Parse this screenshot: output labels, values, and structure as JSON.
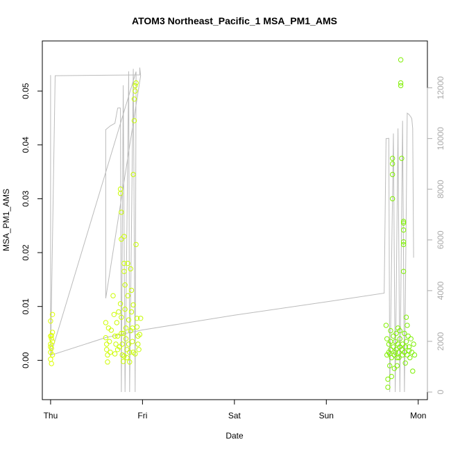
{
  "chart_data": {
    "type": "scatter",
    "title": "ATOM3 Northeast_Pacific_1 MSA_PM1_AMS",
    "xlabel": "Date",
    "ylabel": "MSA_PM1_AMS",
    "x_ticks": [
      "Thu",
      "Fri",
      "Sat",
      "Sun",
      "Mon"
    ],
    "x_range": [
      -0.09,
      4.1
    ],
    "y_ticks": [
      "0.00",
      "0.01",
      "0.02",
      "0.03",
      "0.04",
      "0.05"
    ],
    "y_tick_values": [
      0,
      0.01,
      0.02,
      0.03,
      0.04,
      0.05
    ],
    "y_range": [
      -0.0073,
      0.0593
    ],
    "y2_ticks": [
      "0",
      "2000",
      "4000",
      "6000",
      "8000",
      "10000",
      "12000"
    ],
    "y2_tick_values": [
      0,
      2000,
      4000,
      6000,
      8000,
      10000,
      12000
    ],
    "y2_range": [
      -300,
      13850
    ],
    "grid": false,
    "legend": "none",
    "series": [
      {
        "role": "scatter",
        "color_low": "#ddff00",
        "color_high": "#77ee00",
        "points": [
          [
            0.0,
            0.0073
          ],
          [
            0.0,
            0.0045
          ],
          [
            0.0,
            0.003
          ],
          [
            0.0,
            0.0015
          ],
          [
            0.0,
            0.0002
          ],
          [
            0.01,
            0.004
          ],
          [
            0.01,
            0.0022
          ],
          [
            0.01,
            -0.0006
          ],
          [
            0.02,
            0.0085
          ],
          [
            0.02,
            0.0052
          ],
          [
            0.02,
            0.0035
          ],
          [
            0.02,
            0.001
          ],
          [
            0.0,
            0.0025
          ],
          [
            0.01,
            0.0046
          ],
          [
            0.6,
            0.007
          ],
          [
            0.6,
            0.0042
          ],
          [
            0.61,
            0.003
          ],
          [
            0.61,
            0.002
          ],
          [
            0.62,
            0.001
          ],
          [
            0.62,
            -0.0003
          ],
          [
            0.63,
            0.006
          ],
          [
            0.64,
            0.0035
          ],
          [
            0.65,
            0.0015
          ],
          [
            0.66,
            0.0056
          ],
          [
            0.68,
            0.012
          ],
          [
            0.69,
            0.0085
          ],
          [
            0.7,
            0.0045
          ],
          [
            0.7,
            0.0012
          ],
          [
            0.71,
            0.003
          ],
          [
            0.72,
            0.007
          ],
          [
            0.73,
            0.002
          ],
          [
            0.74,
            0.009
          ],
          [
            0.76,
            0.0318
          ],
          [
            0.76,
            0.031
          ],
          [
            0.77,
            0.0275
          ],
          [
            0.77,
            0.0225
          ],
          [
            0.76,
            0.0105
          ],
          [
            0.77,
            0.008
          ],
          [
            0.77,
            0.005
          ],
          [
            0.78,
            0.003
          ],
          [
            0.78,
            0.001
          ],
          [
            0.79,
            -0.0002
          ],
          [
            0.8,
            0.023
          ],
          [
            0.8,
            0.018
          ],
          [
            0.8,
            0.0165
          ],
          [
            0.81,
            0.014
          ],
          [
            0.81,
            0.0095
          ],
          [
            0.82,
            0.006
          ],
          [
            0.82,
            0.004
          ],
          [
            0.83,
            0.002
          ],
          [
            0.83,
            0.0005
          ],
          [
            0.84,
            0.018
          ],
          [
            0.84,
            0.012
          ],
          [
            0.85,
            0.0075
          ],
          [
            0.85,
            0.003
          ],
          [
            0.86,
            0.0015
          ],
          [
            0.86,
            -0.0003
          ],
          [
            0.87,
            0.017
          ],
          [
            0.88,
            0.013
          ],
          [
            0.88,
            0.009
          ],
          [
            0.89,
            0.006
          ],
          [
            0.89,
            0.0035
          ],
          [
            0.9,
            0.0015
          ],
          [
            0.9,
            0.0103
          ],
          [
            0.9,
            0.0345
          ],
          [
            0.91,
            0.0445
          ],
          [
            0.91,
            0.0485
          ],
          [
            0.92,
            0.051
          ],
          [
            0.92,
            0.05
          ],
          [
            0.93,
            0.0515
          ],
          [
            0.93,
            0.0215
          ],
          [
            0.94,
            0.0078
          ],
          [
            0.94,
            0.0062
          ],
          [
            0.95,
            0.0045
          ],
          [
            0.95,
            0.003
          ],
          [
            0.96,
            0.002
          ],
          [
            0.97,
            0.0048
          ],
          [
            0.98,
            0.0078
          ],
          [
            0.79,
            0.005
          ],
          [
            0.73,
            0.0045
          ],
          [
            0.75,
            0.0025
          ],
          [
            0.8,
            0.0008
          ],
          [
            0.87,
            0.0055
          ],
          [
            0.92,
            0.0012
          ],
          [
            3.65,
            0.0065
          ],
          [
            3.66,
            0.004
          ],
          [
            3.66,
            0.001
          ],
          [
            3.67,
            -0.0035
          ],
          [
            3.67,
            -0.005
          ],
          [
            3.68,
            0.003
          ],
          [
            3.68,
            0.0015
          ],
          [
            3.69,
            -0.001
          ],
          [
            3.7,
            0.0055
          ],
          [
            3.7,
            0.002
          ],
          [
            3.71,
            0.0005
          ],
          [
            3.71,
            -0.003
          ],
          [
            3.72,
            0.0345
          ],
          [
            3.72,
            0.0375
          ],
          [
            3.72,
            0.0365
          ],
          [
            3.72,
            0.03
          ],
          [
            3.73,
            0.0045
          ],
          [
            3.73,
            0.0025
          ],
          [
            3.74,
            0.001
          ],
          [
            3.74,
            -0.0015
          ],
          [
            3.75,
            0.0035
          ],
          [
            3.76,
            0.005
          ],
          [
            3.76,
            0.002
          ],
          [
            3.77,
            0.0005
          ],
          [
            3.77,
            -0.001
          ],
          [
            3.78,
            0.003
          ],
          [
            3.79,
            0.0015
          ],
          [
            3.8,
            0.004
          ],
          [
            3.8,
            0.0025
          ],
          [
            3.8,
            0.0055
          ],
          [
            3.81,
            0.0515
          ],
          [
            3.81,
            0.051
          ],
          [
            3.81,
            0.0558
          ],
          [
            3.82,
            0.0375
          ],
          [
            3.82,
            0.002
          ],
          [
            3.83,
            0.001
          ],
          [
            3.83,
            0.003
          ],
          [
            3.84,
            0.0258
          ],
          [
            3.84,
            0.0255
          ],
          [
            3.84,
            0.0242
          ],
          [
            3.84,
            0.022
          ],
          [
            3.84,
            0.0215
          ],
          [
            3.84,
            0.0165
          ],
          [
            3.85,
            0.005
          ],
          [
            3.85,
            0.0015
          ],
          [
            3.86,
            0.0025
          ],
          [
            3.87,
            0.008
          ],
          [
            3.87,
            0.0035
          ],
          [
            3.88,
            0.0065
          ],
          [
            3.88,
            0.001
          ],
          [
            3.89,
            0.0045
          ],
          [
            3.9,
            0.0025
          ],
          [
            3.91,
            0.0005
          ],
          [
            3.92,
            0.004
          ],
          [
            3.93,
            0.0015
          ],
          [
            3.94,
            -0.002
          ],
          [
            3.95,
            0.003
          ],
          [
            3.96,
            0.001
          ],
          [
            3.79,
            0.0005
          ],
          [
            3.78,
            0.006
          ],
          [
            3.75,
            0.0015
          ],
          [
            3.7,
            0.0035
          ],
          [
            3.69,
            0.0012
          ],
          [
            3.86,
            -0.0005
          ],
          [
            3.9,
            0.0018
          ]
        ]
      },
      {
        "role": "line",
        "axis": "right",
        "color": "#bbbbbb",
        "points": [
          [
            0.0,
            12500
          ],
          [
            0.0,
            1400
          ],
          [
            0.05,
            12480
          ],
          [
            0.95,
            12510
          ],
          [
            0.97,
            12510
          ],
          [
            0.97,
            12800
          ],
          [
            0.98,
            12480
          ],
          [
            0.6,
            3700
          ],
          [
            0.6,
            10350
          ],
          [
            0.65,
            10500
          ],
          [
            0.7,
            10600
          ],
          [
            0.73,
            11200
          ],
          [
            0.75,
            11210
          ],
          [
            0.76,
            11200
          ],
          [
            0.77,
            0
          ],
          [
            0.79,
            12100
          ],
          [
            0.81,
            0
          ],
          [
            0.85,
            12650
          ],
          [
            0.86,
            0
          ],
          [
            0.9,
            12750
          ],
          [
            0.92,
            0
          ],
          [
            0.93,
            12640
          ],
          [
            0.0,
            1450
          ],
          [
            0.6,
            2150
          ],
          [
            1.0,
            2450
          ],
          [
            2.0,
            3030
          ],
          [
            3.0,
            3560
          ],
          [
            3.63,
            3900
          ],
          [
            3.65,
            10000
          ],
          [
            3.68,
            10010
          ],
          [
            3.69,
            0
          ],
          [
            3.73,
            10200
          ],
          [
            3.75,
            0
          ],
          [
            3.78,
            10400
          ],
          [
            3.8,
            0
          ],
          [
            3.83,
            10700
          ],
          [
            3.85,
            0
          ],
          [
            3.88,
            11000
          ],
          [
            3.9,
            10950
          ],
          [
            3.92,
            10850
          ],
          [
            3.93,
            10780
          ],
          [
            3.94,
            10400
          ],
          [
            3.95,
            5300
          ]
        ]
      }
    ]
  }
}
